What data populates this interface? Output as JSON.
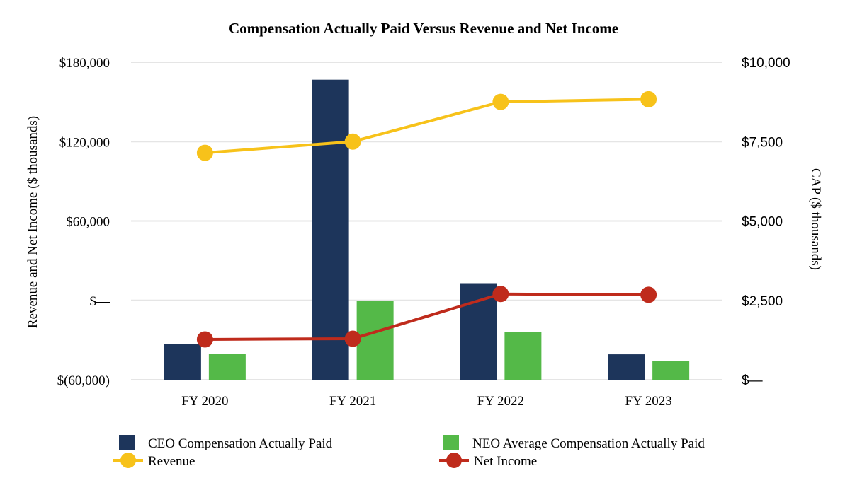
{
  "colors": {
    "ceo": "#1d355b",
    "neo": "#54b948",
    "revenue": "#f7c21a",
    "net_income": "#bf2b1c",
    "grid": "#e5e5e5"
  },
  "chart_data": {
    "type": "bar+line",
    "title": "Compensation Actually Paid Versus Revenue and Net Income",
    "categories": [
      "FY 2020",
      "FY 2021",
      "FY 2022",
      "FY 2023"
    ],
    "left_axis": {
      "label": "Revenue and Net Income ($ thousands)",
      "range": [
        -60000,
        180000
      ],
      "ticks": [
        {
          "value": 180000,
          "label": "$180,000"
        },
        {
          "value": 120000,
          "label": "$120,000"
        },
        {
          "value": 60000,
          "label": "$60,000"
        },
        {
          "value": 0,
          "label": "$—"
        },
        {
          "value": -60000,
          "label": "$(60,000)"
        }
      ]
    },
    "right_axis": {
      "label": "CAP ($ thousands)",
      "range": [
        0,
        10000
      ],
      "ticks": [
        {
          "value": 10000,
          "label": "$10,000"
        },
        {
          "value": 7500,
          "label": "$7,500"
        },
        {
          "value": 5000,
          "label": "$5,000"
        },
        {
          "value": 2500,
          "label": "$2,500"
        },
        {
          "value": 0,
          "label": "$—"
        }
      ]
    },
    "series": [
      {
        "name": "CEO Compensation Actually Paid",
        "type": "bar",
        "axis": "right",
        "values": [
          1130,
          9450,
          3040,
          800
        ]
      },
      {
        "name": "NEO Average Compensation Actually Paid",
        "type": "bar",
        "axis": "right",
        "values": [
          820,
          2490,
          1500,
          600
        ]
      },
      {
        "name": "Revenue",
        "type": "line",
        "axis": "left",
        "values": [
          111500,
          120000,
          150000,
          152000
        ]
      },
      {
        "name": "Net Income",
        "type": "line",
        "axis": "left",
        "values": [
          -29500,
          -29000,
          4800,
          4200
        ]
      }
    ],
    "legend": [
      {
        "label": "CEO Compensation Actually Paid",
        "kind": "bar",
        "color_key": "ceo"
      },
      {
        "label": "NEO Average Compensation Actually Paid",
        "kind": "bar",
        "color_key": "neo"
      },
      {
        "label": "Revenue",
        "kind": "line",
        "color_key": "revenue"
      },
      {
        "label": "Net Income",
        "kind": "line",
        "color_key": "net_income"
      }
    ],
    "legend_position": "bottom",
    "grid": true
  }
}
